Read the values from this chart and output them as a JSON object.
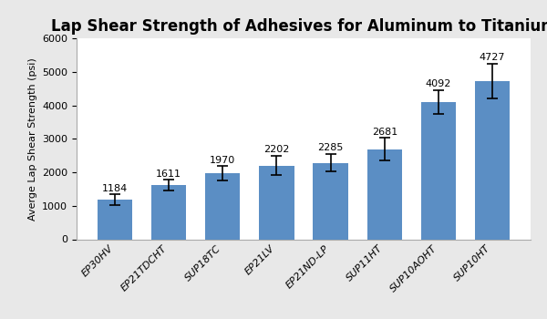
{
  "title": "Lap Shear Strength of Adhesives for Aluminum to Titanium",
  "ylabel": "Averge Lap Shear Strength (psi)",
  "categories": [
    "EP30HV",
    "EP21TDCHT",
    "SUP18TC",
    "EP21LV",
    "EP21ND-LP",
    "SUP11HT",
    "SUP10AOHT",
    "SUP10HT"
  ],
  "values": [
    1184,
    1611,
    1970,
    2202,
    2285,
    2681,
    4092,
    4727
  ],
  "errors": [
    150,
    160,
    210,
    290,
    260,
    340,
    360,
    510
  ],
  "bar_color": "#5b8ec4",
  "ylim": [
    0,
    6000
  ],
  "yticks": [
    0,
    1000,
    2000,
    3000,
    4000,
    5000,
    6000
  ],
  "label_fontsize": 8,
  "title_fontsize": 12,
  "axis_label_fontsize": 8,
  "tick_fontsize": 8,
  "background_color": "#e8e8e8",
  "plot_bg_color": "#ffffff"
}
